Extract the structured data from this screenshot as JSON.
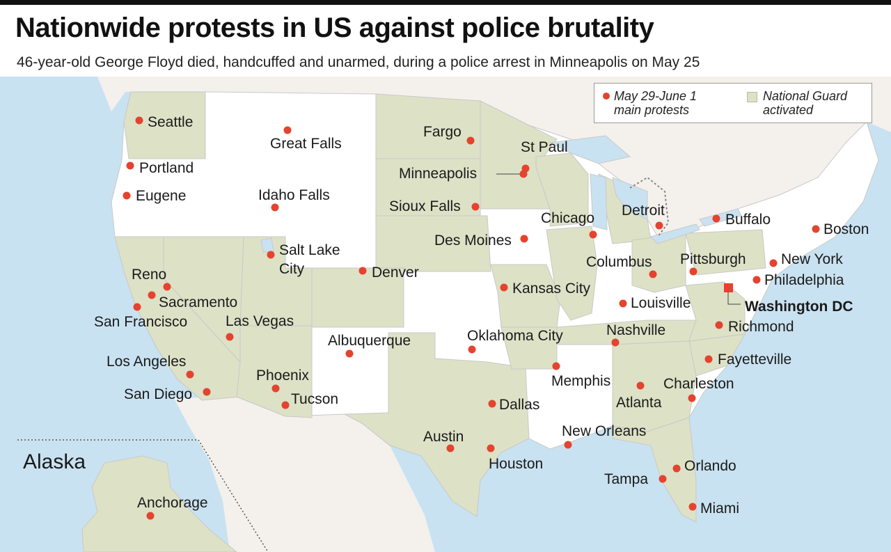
{
  "header": {
    "title": "Nationwide protests in US against police brutality",
    "subtitle": "46-year-old George Floyd died, handcuffed and unarmed, during a police arrest in Minneapolis on May 25"
  },
  "legend": {
    "protests_line1": "May 29-June 1",
    "protests_line2": "main protests",
    "guard_line1": "National Guard",
    "guard_line2": "activated"
  },
  "colors": {
    "water": "#c9e2f1",
    "national_guard": "#dde1c6",
    "not_activated": "#ffffff",
    "neighbor_land": "#f4f0ec",
    "protest_dot": "#e4432f",
    "state_border": "#c9c9c9"
  },
  "cities": {
    "seattle": "Seattle",
    "portland": "Portland",
    "eugene": "Eugene",
    "great_falls": "Great Falls",
    "idaho_falls": "Idaho Falls",
    "salt_lake_1": "Salt Lake",
    "salt_lake_2": "City",
    "reno": "Reno",
    "sacramento": "Sacramento",
    "san_francisco": "San Francisco",
    "las_vegas": "Las Vegas",
    "los_angeles": "Los Angeles",
    "san_diego": "San Diego",
    "phoenix": "Phoenix",
    "tucson": "Tucson",
    "albuquerque": "Albuquerque",
    "denver": "Denver",
    "fargo": "Fargo",
    "st_paul": "St Paul",
    "minneapolis": "Minneapolis",
    "sioux_falls": "Sioux Falls",
    "des_moines": "Des Moines",
    "kansas_city": "Kansas City",
    "oklahoma_city": "Oklahoma City",
    "dallas": "Dallas",
    "austin": "Austin",
    "houston": "Houston",
    "memphis": "Memphis",
    "new_orleans": "New Orleans",
    "chicago": "Chicago",
    "detroit": "Detroit",
    "columbus": "Columbus",
    "louisville": "Louisville",
    "nashville": "Nashville",
    "atlanta": "Atlanta",
    "charleston": "Charleston",
    "orlando": "Orlando",
    "tampa": "Tampa",
    "miami": "Miami",
    "fayetteville": "Fayetteville",
    "richmond": "Richmond",
    "washington_dc": "Washington DC",
    "philadelphia": "Philadelphia",
    "new_york": "New York",
    "pittsburgh": "Pittsburgh",
    "buffalo": "Buffalo",
    "boston": "Boston",
    "alaska": "Alaska",
    "anchorage": "Anchorage"
  }
}
